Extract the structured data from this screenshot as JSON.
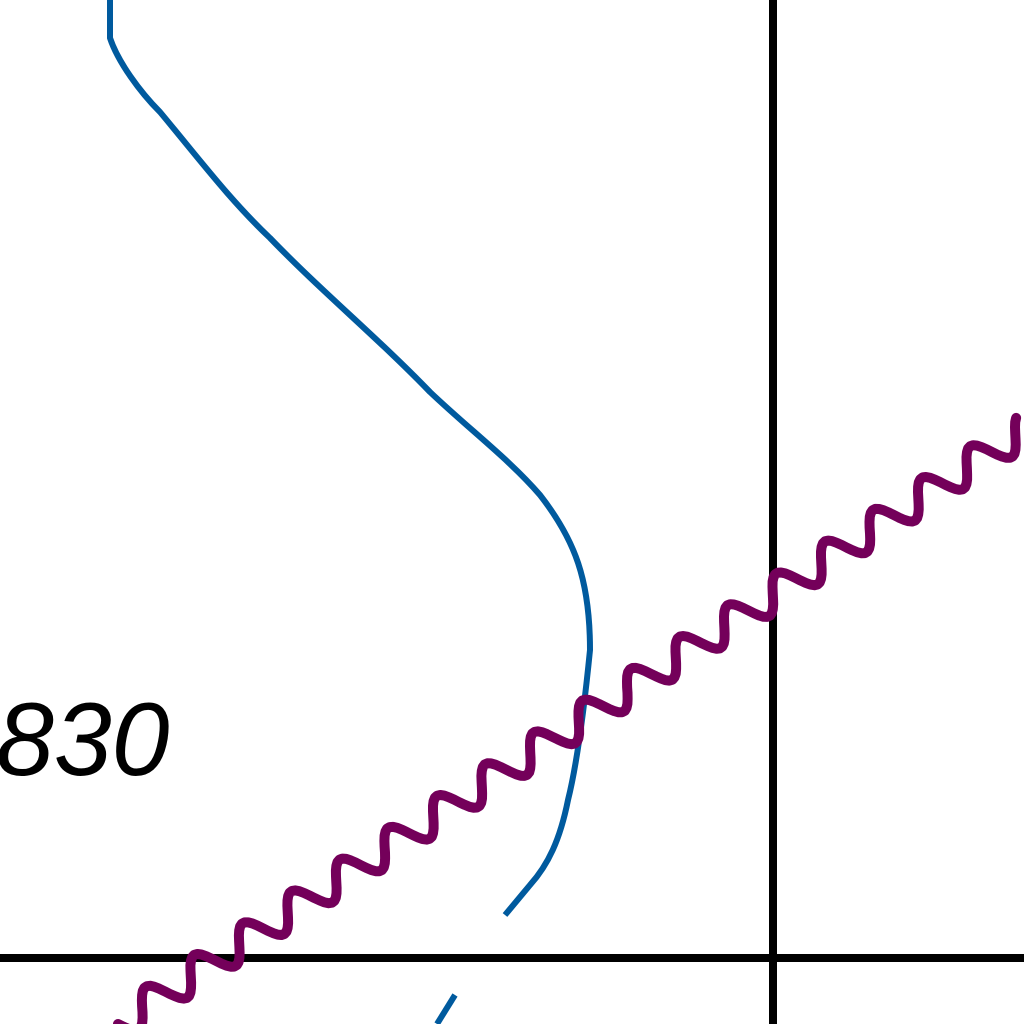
{
  "map": {
    "contour_label": "830",
    "colors": {
      "background": "#ffffff",
      "grid_line": "#000000",
      "contour_line": "#005a9e",
      "boundary_line": "#74005a"
    },
    "features": [
      {
        "kind": "grid-line",
        "orientation": "vertical"
      },
      {
        "kind": "grid-line",
        "orientation": "horizontal"
      },
      {
        "kind": "contour-line",
        "style": "thin solid"
      },
      {
        "kind": "boundary-line",
        "style": "thick wavy"
      }
    ]
  }
}
